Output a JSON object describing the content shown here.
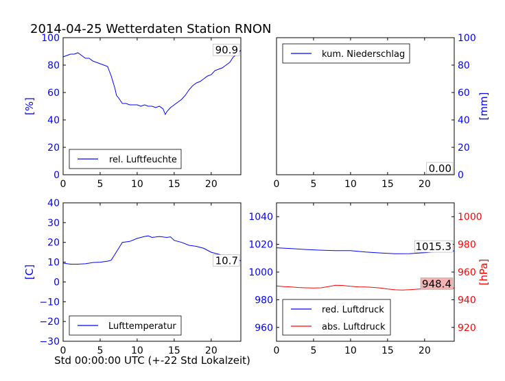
{
  "title": "2014-04-25 Wetterdaten Station RNON",
  "xlabel": "Std 00:00:00 UTC (+-22 Std Lokalzeit)",
  "colors": {
    "blue": "#0000ff",
    "red": "#ff0000",
    "axis": "#000000",
    "boxFill": "#ffffff",
    "redBoxFill": "#f4b3b3"
  },
  "chart_data": [
    {
      "id": "humidity",
      "type": "line",
      "ylabel": "[%]",
      "ylim": [
        0,
        100
      ],
      "yticks": [
        0,
        20,
        40,
        60,
        80,
        100
      ],
      "xlim": [
        0,
        24
      ],
      "xticks": [
        0,
        5,
        10,
        15,
        20
      ],
      "ytick_side": "left",
      "legend": "bottom-left",
      "last_value_label": "90.9",
      "series": [
        {
          "name": "rel. Luftfeuchte",
          "color": "#0000ff",
          "x": [
            0,
            0.5,
            1,
            1.5,
            2,
            2.5,
            3,
            3.5,
            4,
            4.5,
            5,
            5.5,
            6,
            6.5,
            7,
            7.2,
            7.5,
            8,
            8.5,
            9,
            9.5,
            10,
            10.5,
            11,
            11.5,
            12,
            12.5,
            13,
            13.5,
            13.8,
            14,
            14.5,
            15,
            15.5,
            16,
            16.5,
            17,
            17.5,
            18,
            18.5,
            19,
            19.5,
            20,
            20.5,
            21,
            21.5,
            22,
            22.5,
            23,
            23.5,
            24
          ],
          "y": [
            86,
            87,
            88,
            88,
            89,
            87,
            85,
            85,
            83,
            82,
            81,
            80,
            79,
            72,
            63,
            58,
            56,
            52,
            52,
            51,
            51,
            51,
            50,
            51,
            50,
            50,
            49,
            50,
            48,
            44,
            46,
            49,
            51,
            53,
            55,
            58,
            62,
            65,
            67,
            68,
            70,
            72,
            73,
            76,
            77,
            78,
            80,
            82,
            86,
            88,
            90.9
          ]
        }
      ]
    },
    {
      "id": "precip",
      "type": "line",
      "ylabel": "[mm]",
      "ylim": [
        0,
        100
      ],
      "yticks": [
        0,
        20,
        40,
        60,
        80,
        100
      ],
      "xlim": [
        0,
        24
      ],
      "xticks": [
        0,
        5,
        10,
        15,
        20
      ],
      "ytick_side": "right",
      "legend": "top-left",
      "last_value_label": "0.00",
      "series": [
        {
          "name": "kum. Niederschlag",
          "color": "#0000ff",
          "x": [
            0,
            24
          ],
          "y": [
            0,
            0
          ]
        }
      ]
    },
    {
      "id": "temperature",
      "type": "line",
      "ylabel": "[C]",
      "ylim": [
        -30,
        40
      ],
      "yticks": [
        -30,
        -20,
        -10,
        0,
        10,
        20,
        30,
        40
      ],
      "xlim": [
        0,
        24
      ],
      "xticks": [
        0,
        5,
        10,
        15,
        20
      ],
      "ytick_side": "left",
      "legend": "bottom-left",
      "last_value_label": "10.7",
      "series": [
        {
          "name": "Lufttemperatur",
          "color": "#0000ff",
          "x": [
            0,
            1,
            2,
            3,
            4,
            5,
            6,
            6.5,
            7,
            7.5,
            8,
            9,
            10,
            11,
            11.5,
            12,
            13,
            14,
            14.5,
            15,
            16,
            17,
            18,
            19,
            20,
            21,
            22,
            23,
            24
          ],
          "y": [
            9.5,
            9,
            9,
            9.2,
            9.8,
            10,
            10.5,
            11,
            14,
            17,
            20,
            20.5,
            22,
            23,
            23.3,
            22.5,
            23,
            22.5,
            22.8,
            21,
            20,
            18.5,
            18,
            17,
            15,
            14,
            13,
            12,
            10.7
          ]
        }
      ]
    },
    {
      "id": "pressure",
      "type": "line",
      "xlim": [
        0,
        24
      ],
      "xticks": [
        0,
        5,
        10,
        15,
        20
      ],
      "left_axis": {
        "ylim": [
          950,
          1050
        ],
        "yticks": [
          960,
          980,
          1000,
          1020,
          1040
        ],
        "color": "#0000ff"
      },
      "right_axis": {
        "ylabel": "[hPa]",
        "ylim": [
          910,
          1010
        ],
        "yticks": [
          920,
          940,
          960,
          980,
          1000
        ],
        "color": "#ff0000"
      },
      "legend": "bottom-left",
      "series": [
        {
          "name": "red. Luftdruck",
          "color": "#0000ff",
          "axis": "left",
          "last_value_label": "1015.3",
          "x": [
            0,
            2,
            4,
            6,
            8,
            10,
            12,
            14,
            16,
            18,
            20,
            22,
            24
          ],
          "y": [
            1017.5,
            1017,
            1016.3,
            1015.8,
            1015.5,
            1015.5,
            1014.5,
            1013.8,
            1013.2,
            1013.3,
            1014,
            1014.8,
            1015.3
          ]
        },
        {
          "name": "abs. Luftdruck",
          "color": "#ff0000",
          "axis": "right",
          "last_value_label": "948.4",
          "x": [
            0,
            1,
            2,
            3,
            4,
            5,
            6,
            7,
            8,
            9,
            10,
            11,
            12,
            13,
            14,
            15,
            16,
            17,
            18,
            19,
            20,
            21,
            22,
            23,
            24
          ],
          "y": [
            950,
            949.5,
            949.2,
            948.8,
            948.6,
            948.5,
            948.6,
            949.5,
            950.5,
            950.3,
            949.7,
            949.3,
            949.2,
            948.9,
            948.5,
            947.7,
            947.2,
            947.0,
            947.3,
            947.6,
            948.0,
            948.2,
            948.3,
            948.4,
            948.4
          ]
        }
      ]
    }
  ]
}
